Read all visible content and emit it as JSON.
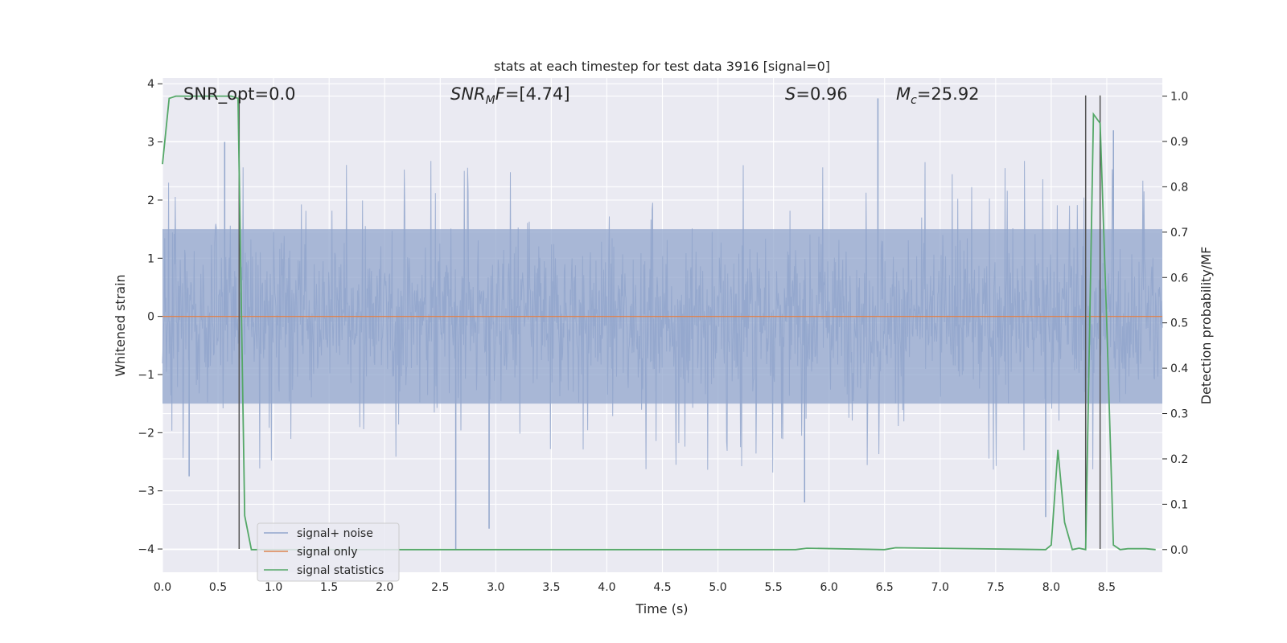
{
  "chart_data": {
    "type": "line",
    "title": "stats at each timestep for test data 3916 [signal=0]",
    "xlabel": "Time (s)",
    "ylabel": "Whitened strain",
    "y2label": "Detection probability/MF",
    "xlim": [
      0.0,
      9.0
    ],
    "ylim": [
      -4.4,
      4.1
    ],
    "y2lim": [
      -0.05,
      1.04
    ],
    "xticks": [
      "0.0",
      "0.5",
      "1.0",
      "1.5",
      "2.0",
      "2.5",
      "3.0",
      "3.5",
      "4.0",
      "4.5",
      "5.0",
      "5.5",
      "6.0",
      "6.5",
      "7.0",
      "7.5",
      "8.0",
      "8.5"
    ],
    "yticks": [
      "4",
      "3",
      "2",
      "1",
      "0",
      "−1",
      "−2",
      "−3",
      "−4"
    ],
    "y2ticks": [
      "1.0",
      "0.9",
      "0.8",
      "0.7",
      "0.6",
      "0.5",
      "0.4",
      "0.3",
      "0.2",
      "0.1",
      "0.0"
    ],
    "grid": true,
    "legend_position": "lower-left",
    "annotations": [
      {
        "id": "snr-opt",
        "text": "SNR_opt=0.0",
        "x": 0.19,
        "y": 3.85
      },
      {
        "id": "snr-mf",
        "text": "=[4.74]",
        "base": "SNR",
        "sub": "M",
        "tail": "F",
        "x": 2.6,
        "y": 3.85
      },
      {
        "id": "s-stat",
        "text": "=0.96",
        "base": "S",
        "x": 5.6,
        "y": 3.85
      },
      {
        "id": "mc",
        "text": "=25.92",
        "base": "M",
        "sub": "c",
        "x": 6.6,
        "y": 3.85
      }
    ],
    "series": [
      {
        "name": "signal+ noise",
        "axis": "left",
        "color": "#92a6cc",
        "style": "dense-noise",
        "n_samples": 1800,
        "envelope_typical": [
          -1.5,
          1.5
        ],
        "notable_spikes": [
          {
            "x": 6.44,
            "y": 3.75
          },
          {
            "x": 0.56,
            "y": 3.0
          },
          {
            "x": 8.56,
            "y": 3.2
          },
          {
            "x": 2.64,
            "y": -4.0
          },
          {
            "x": 2.94,
            "y": -3.65
          },
          {
            "x": 7.95,
            "y": -3.45
          },
          {
            "x": 0.24,
            "y": -2.75
          },
          {
            "x": 5.78,
            "y": -3.2
          }
        ]
      },
      {
        "name": "signal only",
        "axis": "left",
        "color": "#dd8452",
        "x": [
          0.0,
          9.0
        ],
        "y": [
          0.0,
          0.0
        ]
      },
      {
        "name": "signal statistics",
        "axis": "right",
        "color": "#55a868",
        "x": [
          0.0,
          0.06,
          0.12,
          0.62,
          0.68,
          0.74,
          0.8,
          5.7,
          5.8,
          6.5,
          6.6,
          7.95,
          8.0,
          8.06,
          8.12,
          8.19,
          8.25,
          8.31,
          8.38,
          8.44,
          8.5,
          8.56,
          8.62,
          8.69,
          8.75,
          8.85,
          8.94
        ],
        "y": [
          0.85,
          0.995,
          1.0,
          1.0,
          0.995,
          0.075,
          0.0,
          0.0,
          0.003,
          0.0,
          0.004,
          0.0,
          0.01,
          0.22,
          0.06,
          0.0,
          0.003,
          0.0,
          0.96,
          0.94,
          0.5,
          0.01,
          0.0,
          0.002,
          0.002,
          0.002,
          0.0
        ]
      }
    ],
    "vlines": [
      {
        "x": 0.69,
        "y_from": -4.0,
        "y_to": 3.8,
        "color": "#555555"
      },
      {
        "x": 8.31,
        "y_from": -4.0,
        "y_to": 3.8,
        "color": "#555555"
      },
      {
        "x": 8.44,
        "y_from": -4.0,
        "y_to": 3.8,
        "color": "#555555"
      }
    ]
  }
}
